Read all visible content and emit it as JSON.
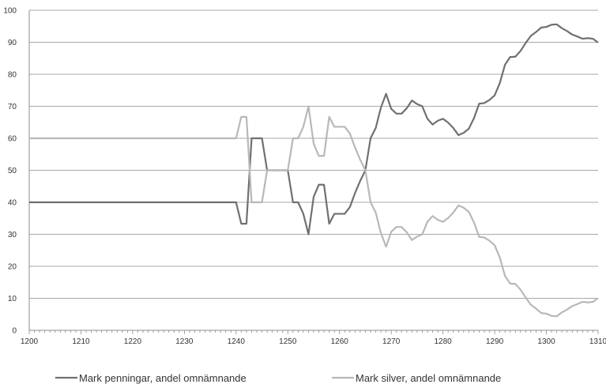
{
  "chart_data": {
    "type": "line",
    "title": "",
    "xlabel": "",
    "ylabel": "",
    "xlim": [
      1200,
      1310
    ],
    "ylim": [
      0,
      100
    ],
    "grid": true,
    "legend_position": "bottom",
    "x_ticks": [
      "1200",
      "1210",
      "1220",
      "1230",
      "1240",
      "1250",
      "1260",
      "1270",
      "1280",
      "1290",
      "1300",
      "1310"
    ],
    "y_ticks": [
      "0",
      "10",
      "20",
      "30",
      "40",
      "50",
      "60",
      "70",
      "80",
      "90",
      "100"
    ],
    "colors": {
      "penningar": "#707070",
      "silver": "#b8b8b8",
      "grid": "#8c8c8c",
      "axis": "#8c8c8c"
    },
    "series": [
      {
        "name": "Mark penningar, andel omnämnande",
        "points": [
          [
            1200,
            40
          ],
          [
            1240,
            40
          ],
          [
            1241,
            33.3
          ],
          [
            1242,
            33.3
          ],
          [
            1243,
            60
          ],
          [
            1244,
            60
          ],
          [
            1245,
            60
          ],
          [
            1246,
            50
          ],
          [
            1247,
            50
          ],
          [
            1248,
            50
          ],
          [
            1249,
            50
          ],
          [
            1250,
            50
          ],
          [
            1251,
            40
          ],
          [
            1252,
            40
          ],
          [
            1253,
            36.4
          ],
          [
            1254,
            30
          ],
          [
            1255,
            41.7
          ],
          [
            1256,
            45.5
          ],
          [
            1257,
            45.5
          ],
          [
            1258,
            33.3
          ],
          [
            1259,
            36.4
          ],
          [
            1260,
            36.4
          ],
          [
            1261,
            36.4
          ],
          [
            1262,
            38.5
          ],
          [
            1263,
            42.9
          ],
          [
            1264,
            46.7
          ],
          [
            1265,
            50
          ],
          [
            1266,
            60
          ],
          [
            1267,
            63.2
          ],
          [
            1268,
            69.6
          ],
          [
            1269,
            73.9
          ],
          [
            1270,
            69.2
          ],
          [
            1271,
            67.7
          ],
          [
            1272,
            67.7
          ],
          [
            1273,
            69.4
          ],
          [
            1274,
            71.8
          ],
          [
            1275,
            70.7
          ],
          [
            1276,
            70
          ],
          [
            1277,
            66.1
          ],
          [
            1278,
            64.3
          ],
          [
            1279,
            65.5
          ],
          [
            1280,
            66.1
          ],
          [
            1281,
            64.9
          ],
          [
            1282,
            63.2
          ],
          [
            1283,
            61
          ],
          [
            1284,
            61.7
          ],
          [
            1285,
            63
          ],
          [
            1286,
            66.3
          ],
          [
            1287,
            70.8
          ],
          [
            1288,
            71
          ],
          [
            1289,
            72
          ],
          [
            1290,
            73.4
          ],
          [
            1291,
            77.3
          ],
          [
            1292,
            83
          ],
          [
            1293,
            85.4
          ],
          [
            1294,
            85.5
          ],
          [
            1295,
            87.3
          ],
          [
            1296,
            89.8
          ],
          [
            1297,
            92
          ],
          [
            1298,
            93.2
          ],
          [
            1299,
            94.6
          ],
          [
            1300,
            94.8
          ],
          [
            1301,
            95.5
          ],
          [
            1302,
            95.6
          ],
          [
            1303,
            94.4
          ],
          [
            1304,
            93.5
          ],
          [
            1305,
            92.4
          ],
          [
            1306,
            91.8
          ],
          [
            1307,
            91.1
          ],
          [
            1308,
            91.3
          ],
          [
            1309,
            91.1
          ],
          [
            1310,
            89.9
          ]
        ]
      },
      {
        "name": "Mark silver, andel omnämnande",
        "points": [
          [
            1200,
            60
          ],
          [
            1240,
            60
          ],
          [
            1241,
            66.7
          ],
          [
            1242,
            66.7
          ],
          [
            1243,
            40
          ],
          [
            1244,
            40
          ],
          [
            1245,
            40
          ],
          [
            1246,
            50
          ],
          [
            1247,
            50
          ],
          [
            1248,
            50
          ],
          [
            1249,
            50
          ],
          [
            1250,
            50
          ],
          [
            1251,
            60
          ],
          [
            1252,
            60
          ],
          [
            1253,
            63.6
          ],
          [
            1254,
            70
          ],
          [
            1255,
            58.3
          ],
          [
            1256,
            54.5
          ],
          [
            1257,
            54.5
          ],
          [
            1258,
            66.7
          ],
          [
            1259,
            63.6
          ],
          [
            1260,
            63.6
          ],
          [
            1261,
            63.6
          ],
          [
            1262,
            61.5
          ],
          [
            1263,
            57.1
          ],
          [
            1264,
            53.3
          ],
          [
            1265,
            50
          ],
          [
            1266,
            40
          ],
          [
            1267,
            36.8
          ],
          [
            1268,
            30.4
          ],
          [
            1269,
            26.1
          ],
          [
            1270,
            30.8
          ],
          [
            1271,
            32.3
          ],
          [
            1272,
            32.3
          ],
          [
            1273,
            30.6
          ],
          [
            1274,
            28.2
          ],
          [
            1275,
            29.3
          ],
          [
            1276,
            30
          ],
          [
            1277,
            33.9
          ],
          [
            1278,
            35.7
          ],
          [
            1279,
            34.5
          ],
          [
            1280,
            33.9
          ],
          [
            1281,
            35.1
          ],
          [
            1282,
            36.8
          ],
          [
            1283,
            39
          ],
          [
            1284,
            38.3
          ],
          [
            1285,
            37
          ],
          [
            1286,
            33.7
          ],
          [
            1287,
            29.2
          ],
          [
            1288,
            29
          ],
          [
            1289,
            28
          ],
          [
            1290,
            26.6
          ],
          [
            1291,
            22.7
          ],
          [
            1292,
            17
          ],
          [
            1293,
            14.6
          ],
          [
            1294,
            14.5
          ],
          [
            1295,
            12.7
          ],
          [
            1296,
            10.2
          ],
          [
            1297,
            8
          ],
          [
            1298,
            6.8
          ],
          [
            1299,
            5.4
          ],
          [
            1300,
            5.2
          ],
          [
            1301,
            4.5
          ],
          [
            1302,
            4.4
          ],
          [
            1303,
            5.6
          ],
          [
            1304,
            6.5
          ],
          [
            1305,
            7.6
          ],
          [
            1306,
            8.2
          ],
          [
            1307,
            8.9
          ],
          [
            1308,
            8.7
          ],
          [
            1309,
            8.9
          ],
          [
            1310,
            10.1
          ]
        ]
      }
    ]
  }
}
